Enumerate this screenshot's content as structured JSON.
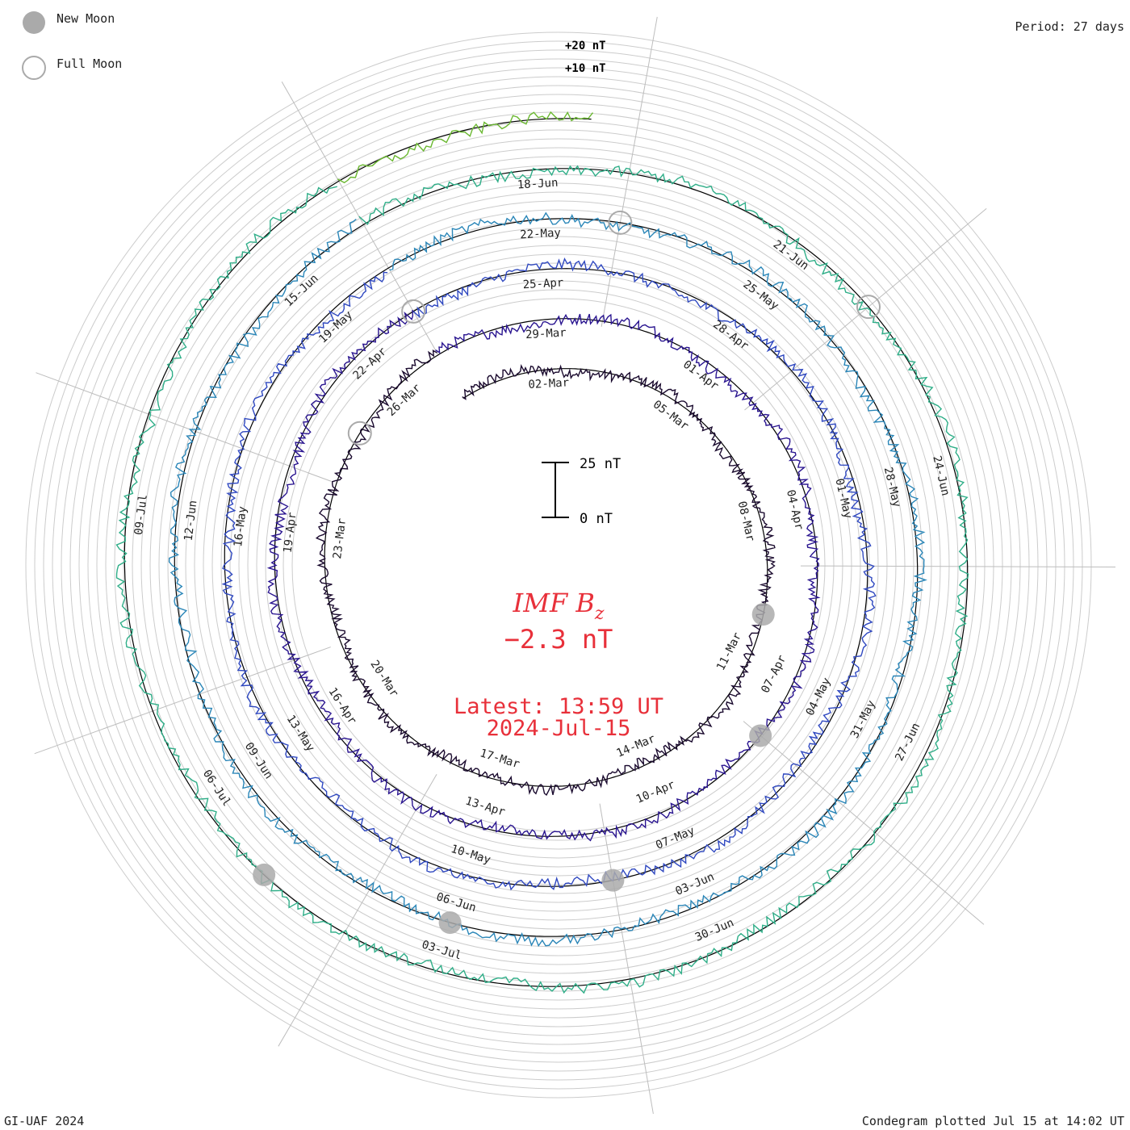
{
  "header": {
    "legend_new_moon": "New Moon",
    "legend_full_moon": "Full Moon",
    "period": "Period: 27 days"
  },
  "footer": {
    "credit": "GI-UAF 2024",
    "plotted": "Condegram plotted Jul 15 at 14:02 UT"
  },
  "center": {
    "title_main": "IMF B",
    "title_sub": "z",
    "value": "−2.3 nT",
    "latest": "Latest: 13:59 UT",
    "date": "2024-Jul-15"
  },
  "scale_bar": {
    "top_label": "25 nT",
    "bottom_label": "0 nT"
  },
  "ring_labels": {
    "plus20": "+20 nT",
    "plus10": "+10 nT"
  },
  "chart_data": {
    "type": "line",
    "title": "IMF Bz",
    "layout": "spiral condegram, 27-day period per turn",
    "period_days": 27,
    "latest_value_nT": -2.3,
    "start_date": "2024-02-29",
    "end_date": "2024-07-15",
    "date_labels": [
      "02-Mar",
      "05-Mar",
      "08-Mar",
      "11-Mar",
      "14-Mar",
      "17-Mar",
      "20-Mar",
      "23-Mar",
      "26-Mar",
      "29-Mar",
      "01-Apr",
      "04-Apr",
      "07-Apr",
      "10-Apr",
      "13-Apr",
      "16-Apr",
      "19-Apr",
      "22-Apr",
      "25-Apr",
      "28-Apr",
      "01-May",
      "04-May",
      "07-May",
      "10-May",
      "13-May",
      "16-May",
      "19-May",
      "22-May",
      "25-May",
      "28-May",
      "31-May",
      "03-Jun",
      "06-Jun",
      "09-Jun",
      "12-Jun",
      "15-Jun",
      "18-Jun",
      "21-Jun",
      "24-Jun",
      "27-Jun",
      "30-Jun",
      "03-Jul",
      "06-Jul",
      "09-Jul"
    ],
    "new_moons": [
      "2024-03-10",
      "2024-04-08",
      "2024-05-08",
      "2024-06-06",
      "2024-07-05"
    ],
    "full_moons": [
      "2024-03-25",
      "2024-04-23",
      "2024-05-23",
      "2024-06-22"
    ],
    "y_unit": "nT",
    "grid": true
  }
}
